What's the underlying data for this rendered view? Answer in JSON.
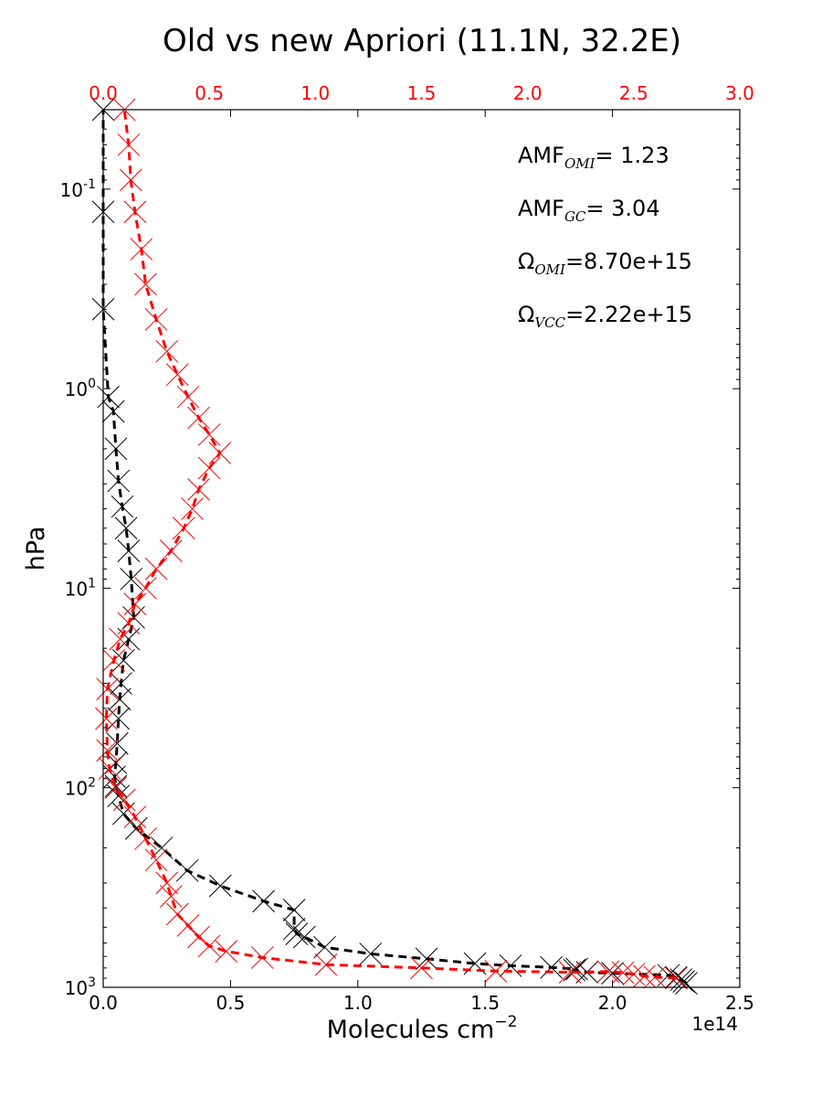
{
  "colors": {
    "old": "#ff0000",
    "new": "#000000",
    "top_axis": "#ff0000"
  },
  "chart_data": {
    "type": "line",
    "title": "Old vs new Apriori (11.1N, 32.2E)",
    "xlabel_main": "Molecules cm",
    "xlabel_sup": "−2",
    "ylabel": "hPa",
    "x_offset_label": "1e14",
    "xlim": [
      0,
      2.5
    ],
    "xlim_top": [
      0,
      3.0
    ],
    "ylim": [
      1000,
      0.04
    ],
    "yscale": "log",
    "x_ticks": [
      "0.0",
      "0.5",
      "1.0",
      "1.5",
      "2.0",
      "2.5"
    ],
    "x_top_ticks": [
      "0.0",
      "0.5",
      "1.0",
      "1.5",
      "2.0",
      "2.5",
      "3.0"
    ],
    "y_ticks": [
      {
        "value": 1000,
        "base": "10",
        "exp": "3"
      },
      {
        "value": 100,
        "base": "10",
        "exp": "2"
      },
      {
        "value": 10,
        "base": "10",
        "exp": "1"
      },
      {
        "value": 1,
        "base": "10",
        "exp": "0"
      },
      {
        "value": 0.1,
        "base": "10",
        "exp": "-1"
      }
    ],
    "annotations": [
      {
        "main": "AMF",
        "sub": "OMI",
        "rest": "= 1.23"
      },
      {
        "main": "AMF",
        "sub": "GC",
        "rest": "= 3.04"
      },
      {
        "main": "Ω",
        "sub": "OMI",
        "rest": "=8.70e+15"
      },
      {
        "main": "Ω",
        "sub": "VCC",
        "rest": "=2.22e+15"
      }
    ],
    "series": [
      {
        "color": "#000000",
        "axis": "bottom",
        "points": [
          [
            2.29,
            955
          ],
          [
            2.28,
            935
          ],
          [
            2.27,
            915
          ],
          [
            2.25,
            890
          ],
          [
            2.22,
            870
          ],
          [
            2.0,
            850
          ],
          [
            1.9,
            840
          ],
          [
            1.85,
            820
          ],
          [
            1.86,
            810
          ],
          [
            1.76,
            795
          ],
          [
            1.6,
            780
          ],
          [
            1.46,
            760
          ],
          [
            1.27,
            720
          ],
          [
            1.05,
            680
          ],
          [
            0.87,
            630
          ],
          [
            0.79,
            560
          ],
          [
            0.76,
            540
          ],
          [
            0.75,
            510
          ],
          [
            0.75,
            410
          ],
          [
            0.63,
            370
          ],
          [
            0.46,
            310
          ],
          [
            0.33,
            260
          ],
          [
            0.23,
            200
          ],
          [
            0.13,
            160
          ],
          [
            0.08,
            135
          ],
          [
            0.06,
            110
          ],
          [
            0.05,
            98
          ],
          [
            0.045,
            88
          ],
          [
            0.05,
            75
          ],
          [
            0.055,
            60
          ],
          [
            0.06,
            45
          ],
          [
            0.065,
            36
          ],
          [
            0.07,
            30
          ],
          [
            0.08,
            23
          ],
          [
            0.1,
            18
          ],
          [
            0.12,
            14
          ],
          [
            0.11,
            9
          ],
          [
            0.1,
            6.5
          ],
          [
            0.09,
            5
          ],
          [
            0.075,
            3.9
          ],
          [
            0.06,
            2.9
          ],
          [
            0.05,
            2.0
          ],
          [
            0.04,
            1.3
          ],
          [
            0.02,
            1.1
          ],
          [
            0.0,
            0.4
          ],
          [
            0.0,
            0.13
          ],
          [
            0.0,
            0.04
          ]
        ]
      },
      {
        "color": "#ff0000",
        "axis": "top",
        "points": [
          [
            2.7,
            900
          ],
          [
            2.6,
            890
          ],
          [
            2.55,
            880
          ],
          [
            2.5,
            860
          ],
          [
            2.45,
            845
          ],
          [
            2.38,
            835
          ],
          [
            2.2,
            840
          ],
          [
            1.85,
            830
          ],
          [
            1.5,
            800
          ],
          [
            1.05,
            770
          ],
          [
            0.75,
            710
          ],
          [
            0.58,
            660
          ],
          [
            0.5,
            620
          ],
          [
            0.45,
            560
          ],
          [
            0.4,
            490
          ],
          [
            0.35,
            430
          ],
          [
            0.32,
            350
          ],
          [
            0.3,
            300
          ],
          [
            0.25,
            230
          ],
          [
            0.2,
            180
          ],
          [
            0.15,
            140
          ],
          [
            0.1,
            115
          ],
          [
            0.06,
            100
          ],
          [
            0.03,
            80
          ],
          [
            0.02,
            65
          ],
          [
            0.015,
            45
          ],
          [
            0.02,
            32
          ],
          [
            0.05,
            23
          ],
          [
            0.08,
            18
          ],
          [
            0.12,
            15
          ],
          [
            0.15,
            12
          ],
          [
            0.2,
            10
          ],
          [
            0.25,
            8
          ],
          [
            0.32,
            6.5
          ],
          [
            0.38,
            5
          ],
          [
            0.42,
            4
          ],
          [
            0.45,
            3.2
          ],
          [
            0.5,
            2.5
          ],
          [
            0.55,
            2.1
          ],
          [
            0.5,
            1.7
          ],
          [
            0.45,
            1.4
          ],
          [
            0.4,
            1.1
          ],
          [
            0.35,
            0.85
          ],
          [
            0.3,
            0.65
          ],
          [
            0.25,
            0.45
          ],
          [
            0.2,
            0.3
          ],
          [
            0.18,
            0.2
          ],
          [
            0.15,
            0.13
          ],
          [
            0.13,
            0.09
          ],
          [
            0.12,
            0.06
          ],
          [
            0.1,
            0.04
          ]
        ]
      }
    ]
  }
}
